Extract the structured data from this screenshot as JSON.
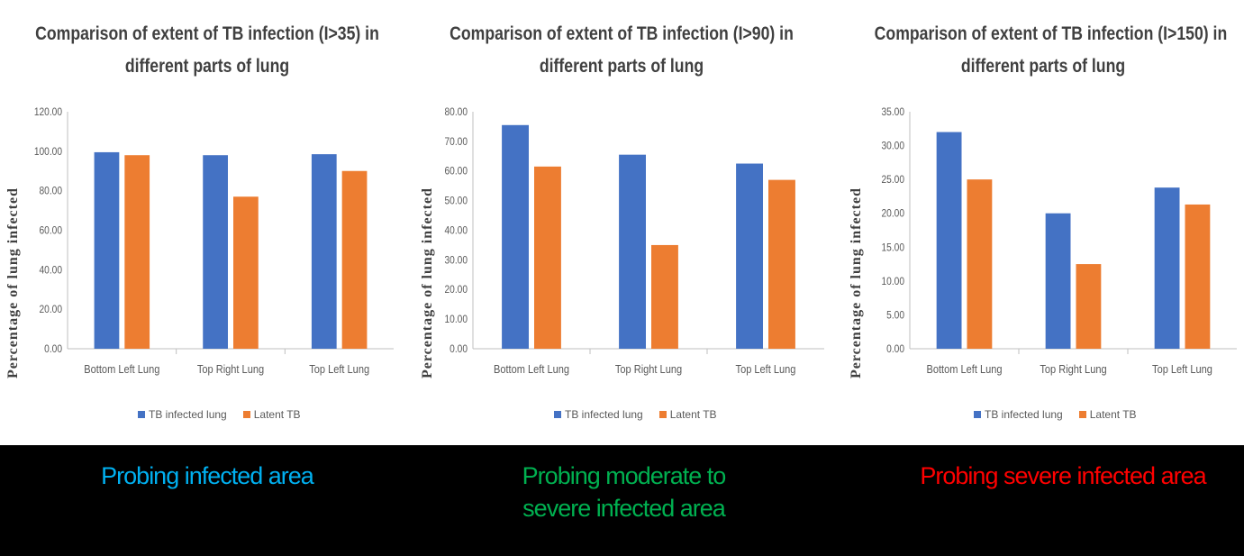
{
  "chart_data": [
    {
      "type": "bar",
      "title_lines": [
        "Comparison of extent of TB infection (I>35) in",
        "different parts of lung"
      ],
      "ylabel": "Percentage of lung infected",
      "xlabel": "",
      "categories": [
        "Bottom Left Lung",
        "Top Right Lung",
        "Top Left Lung"
      ],
      "series": [
        {
          "name": "TB infected lung",
          "color": "#4472C4",
          "values": [
            99.5,
            98.0,
            98.5
          ]
        },
        {
          "name": "Latent TB",
          "color": "#ED7D31",
          "values": [
            98.0,
            77.0,
            90.0
          ]
        }
      ],
      "ylim": [
        0,
        120
      ],
      "yticks": [
        "0.00",
        "20.00",
        "40.00",
        "60.00",
        "80.00",
        "100.00",
        "120.00"
      ],
      "legend": "bottom",
      "grid": false
    },
    {
      "type": "bar",
      "title_lines": [
        "Comparison of extent of TB infection (I>90) in",
        "different parts of lung"
      ],
      "ylabel": "Percentage of lung infected",
      "xlabel": "",
      "categories": [
        "Bottom Left Lung",
        "Top Right Lung",
        "Top Left Lung"
      ],
      "series": [
        {
          "name": "TB infected lung",
          "color": "#4472C4",
          "values": [
            75.5,
            65.5,
            62.5
          ]
        },
        {
          "name": "Latent TB",
          "color": "#ED7D31",
          "values": [
            61.5,
            35.0,
            57.0
          ]
        }
      ],
      "ylim": [
        0,
        80
      ],
      "yticks": [
        "0.00",
        "10.00",
        "20.00",
        "30.00",
        "40.00",
        "50.00",
        "60.00",
        "70.00",
        "80.00"
      ],
      "legend": "bottom",
      "grid": false
    },
    {
      "type": "bar",
      "title_lines": [
        "Comparison of extent of TB infection (I>150) in",
        "different parts of lung"
      ],
      "ylabel": "Percentage of lung infected",
      "xlabel": "",
      "categories": [
        "Bottom Left Lung",
        "Top Right Lung",
        "Top Left Lung"
      ],
      "series": [
        {
          "name": "TB infected lung",
          "color": "#4472C4",
          "values": [
            32.0,
            20.0,
            23.8
          ]
        },
        {
          "name": "Latent TB",
          "color": "#ED7D31",
          "values": [
            25.0,
            12.5,
            21.3
          ]
        }
      ],
      "ylim": [
        0,
        35
      ],
      "yticks": [
        "0.00",
        "5.00",
        "10.00",
        "15.00",
        "20.00",
        "25.00",
        "30.00",
        "35.00"
      ],
      "legend": "bottom",
      "grid": false
    }
  ],
  "captions": [
    {
      "text": "Probing infected area",
      "color": "#00B0F0"
    },
    {
      "text_lines": [
        "Probing moderate to",
        "severe infected area"
      ],
      "color": "#00B050"
    },
    {
      "text": "Probing severe infected area",
      "color": "#FF0000"
    }
  ]
}
